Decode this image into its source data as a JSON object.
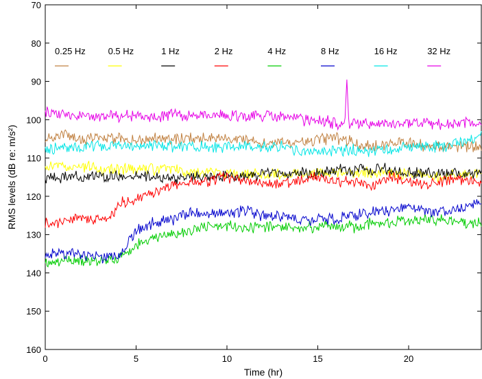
{
  "chart_data": {
    "type": "line",
    "title": "",
    "xlabel": "Time (hr)",
    "ylabel": "RMS levels (dB re: m/s²)",
    "xlim": [
      0,
      24
    ],
    "ylim": [
      160,
      70
    ],
    "y_inverted": true,
    "xticks": [
      0,
      5,
      10,
      15,
      20
    ],
    "yticks": [
      70,
      80,
      90,
      100,
      110,
      120,
      130,
      140,
      150,
      160
    ],
    "legend_placement": "top",
    "grid": false,
    "series": [
      {
        "name": "0.25 Hz",
        "color": "#c08040",
        "x": [
          0,
          1,
          2,
          3,
          4,
          5,
          6,
          7,
          8,
          9,
          10,
          11,
          12,
          13,
          14,
          15,
          16,
          17,
          18,
          19,
          20,
          21,
          22,
          23,
          24
        ],
        "y": [
          105,
          104,
          105,
          105,
          105,
          105,
          105,
          105,
          105,
          105,
          105,
          105,
          106,
          106,
          106,
          105,
          105,
          106,
          107,
          106,
          106,
          107,
          107,
          107,
          107
        ]
      },
      {
        "name": "0.5 Hz",
        "color": "#ffff00",
        "x": [
          0,
          1,
          2,
          3,
          4,
          5,
          6,
          7,
          8,
          9,
          10,
          11,
          12,
          13,
          14,
          15,
          16,
          17,
          18,
          19,
          20,
          21,
          22,
          23,
          24
        ],
        "y": [
          112,
          112,
          112,
          113,
          113,
          113,
          113,
          113,
          114,
          114,
          114,
          114,
          114,
          114,
          114,
          114,
          114,
          114,
          114,
          114,
          114,
          115,
          115,
          114,
          114
        ]
      },
      {
        "name": "1 Hz",
        "color": "#000000",
        "x": [
          0,
          1,
          2,
          3,
          4,
          5,
          6,
          7,
          8,
          9,
          10,
          11,
          12,
          13,
          14,
          15,
          16,
          17,
          18,
          19,
          20,
          21,
          22,
          23,
          24
        ],
        "y": [
          115,
          115,
          115,
          115,
          115,
          115,
          115,
          115,
          115,
          115,
          115,
          115,
          114,
          114,
          114,
          114,
          113,
          113,
          113,
          113,
          114,
          114,
          114,
          114,
          114
        ]
      },
      {
        "name": "2 Hz",
        "color": "#ff0000",
        "x": [
          0,
          0.5,
          1,
          2,
          3,
          3.8,
          4,
          5,
          6,
          7,
          8,
          9,
          10,
          11,
          12,
          13,
          14,
          15,
          16,
          17,
          18,
          19,
          20,
          21,
          22,
          23,
          24
        ],
        "y": [
          127,
          127,
          126,
          126,
          126,
          125,
          122,
          121,
          119,
          117,
          116,
          116,
          115,
          116,
          117,
          117,
          116,
          115,
          116,
          116,
          117,
          115,
          116,
          117,
          116,
          116,
          116
        ]
      },
      {
        "name": "4 Hz",
        "color": "#00cc00",
        "x": [
          0,
          1,
          2,
          3,
          4,
          5,
          6,
          7,
          8,
          9,
          10,
          11,
          12,
          13,
          14,
          15,
          16,
          17,
          18,
          19,
          20,
          21,
          22,
          23,
          24
        ],
        "y": [
          137,
          137,
          137,
          137,
          136,
          133,
          131,
          130,
          129,
          128,
          128,
          128,
          128,
          128,
          128,
          128,
          128,
          128,
          127,
          127,
          126,
          126,
          126,
          127,
          127
        ]
      },
      {
        "name": "8 Hz",
        "color": "#0000cc",
        "x": [
          0,
          1,
          2,
          3,
          4,
          5,
          6,
          7,
          8,
          9,
          10,
          11,
          12,
          13,
          14,
          15,
          16,
          17,
          18,
          19,
          20,
          21,
          22,
          23,
          24
        ],
        "y": [
          135,
          135,
          135,
          136,
          136,
          129,
          127,
          126,
          124,
          125,
          124,
          124,
          125,
          125,
          126,
          126,
          126,
          125,
          124,
          124,
          123,
          124,
          124,
          123,
          122
        ]
      },
      {
        "name": "16 Hz",
        "color": "#00e5e5",
        "x": [
          0,
          1,
          2,
          3,
          4,
          5,
          6,
          7,
          8,
          9,
          10,
          11,
          12,
          13,
          14,
          15,
          16,
          17,
          18,
          19,
          20,
          21,
          22,
          23,
          24
        ],
        "y": [
          108,
          107,
          107,
          107,
          107,
          107,
          107,
          107,
          107,
          107,
          107,
          107,
          107,
          107,
          108,
          108,
          108,
          108,
          108,
          108,
          107,
          107,
          107,
          106,
          104
        ]
      },
      {
        "name": "32 Hz",
        "color": "#e600e6",
        "x": [
          0,
          1,
          2,
          3,
          4,
          5,
          6,
          7,
          8,
          9,
          10,
          11,
          12,
          13,
          14,
          15,
          16,
          16.5,
          16.6,
          16.7,
          17,
          18,
          19,
          20,
          21,
          22,
          23,
          24
        ],
        "y": [
          98,
          98,
          99,
          99,
          99,
          99,
          99,
          99,
          99,
          99,
          99,
          99,
          99,
          99,
          100,
          100,
          101,
          101,
          89,
          101,
          101,
          101,
          101,
          101,
          101,
          101,
          101,
          101
        ]
      }
    ]
  }
}
